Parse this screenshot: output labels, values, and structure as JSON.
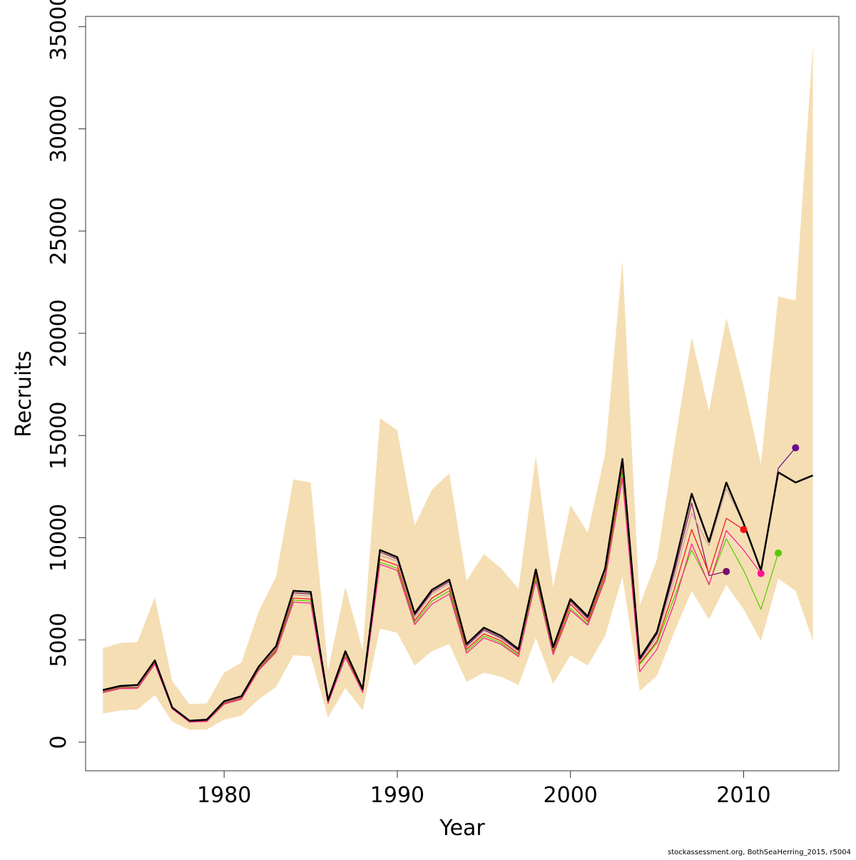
{
  "chart_data": {
    "type": "line",
    "xlabel": "Year",
    "ylabel": "Recruits",
    "xlim": [
      1972,
      2015.5
    ],
    "ylim": [
      -1400,
      35500
    ],
    "x_ticks": [
      1980,
      1990,
      2000,
      2010
    ],
    "y_ticks": [
      0,
      5000,
      10000,
      15000,
      20000,
      25000,
      30000,
      35000
    ],
    "grid": false,
    "legend": "none",
    "colors": {
      "band": "#f5deb3",
      "main_line": "#000000"
    },
    "band": {
      "x": [
        1973,
        1974,
        1975,
        1976,
        1977,
        1978,
        1979,
        1980,
        1981,
        1982,
        1983,
        1984,
        1985,
        1986,
        1987,
        1988,
        1989,
        1990,
        1991,
        1992,
        1993,
        1994,
        1995,
        1996,
        1997,
        1998,
        1999,
        2000,
        2001,
        2002,
        2003,
        2004,
        2005,
        2006,
        2007,
        2008,
        2009,
        2010,
        2011,
        2012,
        2013,
        2014
      ],
      "upper": [
        4600,
        4850,
        4900,
        7100,
        3000,
        1850,
        1900,
        3400,
        3900,
        6400,
        8100,
        12850,
        12700,
        3500,
        7600,
        4500,
        15850,
        15250,
        10600,
        12350,
        13150,
        7900,
        9200,
        8500,
        7500,
        14000,
        7600,
        11600,
        10250,
        14100,
        23550,
        6700,
        8950,
        14500,
        19800,
        16200,
        20750,
        17400,
        13600,
        21800,
        21600,
        34150
      ],
      "lower": [
        1400,
        1550,
        1600,
        2300,
        1000,
        600,
        620,
        1100,
        1300,
        2100,
        2700,
        4250,
        4200,
        1200,
        2650,
        1550,
        5550,
        5350,
        3750,
        4450,
        4800,
        2950,
        3400,
        3200,
        2800,
        5100,
        2850,
        4250,
        3750,
        5200,
        8100,
        2500,
        3250,
        5400,
        7400,
        6000,
        7700,
        6500,
        4950,
        8000,
        7400,
        4950
      ]
    },
    "series": [
      {
        "color": "#000000",
        "x": [
          1973,
          1974,
          1975,
          1976,
          1977,
          1978,
          1979,
          1980,
          1981,
          1982,
          1983,
          1984,
          1985,
          1986,
          1987,
          1988,
          1989,
          1990,
          1991,
          1992,
          1993,
          1994,
          1995,
          1996,
          1997,
          1998,
          1999,
          2000,
          2001,
          2002,
          2003,
          2004,
          2005,
          2006,
          2007,
          2008,
          2009,
          2010,
          2011,
          2012,
          2013,
          2014
        ],
        "y": [
          2550,
          2750,
          2800,
          4000,
          1700,
          1050,
          1100,
          2000,
          2250,
          3700,
          4700,
          7400,
          7350,
          2050,
          4450,
          2600,
          9400,
          9050,
          6300,
          7450,
          7950,
          4800,
          5600,
          5200,
          4550,
          8450,
          4650,
          7000,
          6150,
          8500,
          13850,
          4100,
          5400,
          8600,
          12150,
          9800,
          12700,
          10700,
          8400,
          13200,
          12700,
          13050
        ]
      },
      {
        "color": "#7b0f6b",
        "x": [
          1973,
          1974,
          1975,
          1976,
          1977,
          1978,
          1979,
          1980,
          1981,
          1982,
          1983,
          1984,
          1985,
          1986,
          1987,
          1988,
          1989,
          1990,
          1991,
          1992,
          1993,
          1994,
          1995,
          1996,
          1997,
          1998,
          1999,
          2000,
          2001,
          2002,
          2003,
          2004,
          2005,
          2006,
          2007,
          2008,
          2009
        ],
        "y": [
          2500,
          2700,
          2700,
          3950,
          1680,
          1020,
          1060,
          1950,
          2200,
          3650,
          4650,
          7300,
          7250,
          2020,
          4380,
          2560,
          9300,
          8950,
          6200,
          7350,
          7850,
          4700,
          5500,
          5100,
          4480,
          8350,
          4580,
          6900,
          6050,
          8400,
          13600,
          4000,
          5300,
          8300,
          11700,
          8150,
          8350
        ]
      },
      {
        "color": "#c8a0a0",
        "x": [
          1973,
          1974,
          1975,
          1976,
          1977,
          1978,
          1979,
          1980,
          1981,
          1982,
          1983,
          1984,
          1985,
          1986,
          1987,
          1988,
          1989,
          1990,
          1991,
          1992,
          1993,
          1994,
          1995,
          1996,
          1997,
          1998,
          1999,
          2000,
          2001,
          2002,
          2003,
          2004,
          2005,
          2006,
          2007,
          2008,
          2009,
          2010
        ],
        "y": [
          2480,
          2680,
          2690,
          3920,
          1670,
          1010,
          1050,
          1930,
          2180,
          3620,
          4600,
          7200,
          7150,
          2000,
          4350,
          2540,
          9150,
          8850,
          6100,
          7250,
          7750,
          4650,
          5450,
          5050,
          4430,
          8300,
          4530,
          6850,
          6000,
          8350,
          13500,
          3950,
          5150,
          8000,
          11200,
          9600,
          12400,
          10700
        ]
      },
      {
        "color": "#ee1111",
        "x": [
          1973,
          1974,
          1975,
          1976,
          1977,
          1978,
          1979,
          1980,
          1981,
          1982,
          1983,
          1984,
          1985,
          1986,
          1987,
          1988,
          1989,
          1990,
          1991,
          1992,
          1993,
          1994,
          1995,
          1996,
          1997,
          1998,
          1999,
          2000,
          2001,
          2002,
          2003,
          2004,
          2005,
          2006,
          2007,
          2008,
          2009,
          2010
        ],
        "y": [
          2460,
          2660,
          2670,
          3880,
          1650,
          1000,
          1030,
          1900,
          2150,
          3580,
          4520,
          7050,
          7000,
          1960,
          4250,
          2500,
          8950,
          8650,
          5950,
          7050,
          7550,
          4550,
          5300,
          4950,
          4330,
          8150,
          4430,
          6750,
          5900,
          8200,
          13300,
          3850,
          4950,
          7500,
          10400,
          8250,
          10950,
          10400
        ]
      },
      {
        "color": "#55cc00",
        "x": [
          1973,
          1974,
          1975,
          1976,
          1977,
          1978,
          1979,
          1980,
          1981,
          1982,
          1983,
          1984,
          1985,
          1986,
          1987,
          1988,
          1989,
          1990,
          1991,
          1992,
          1993,
          1994,
          1995,
          1996,
          1997,
          1998,
          1999,
          2000,
          2001,
          2002,
          2003,
          2004,
          2005,
          2006,
          2007,
          2008,
          2009,
          2010,
          2011,
          2012
        ],
        "y": [
          2440,
          2640,
          2650,
          3850,
          1640,
          990,
          1020,
          1880,
          2120,
          3550,
          4450,
          6950,
          6900,
          1940,
          4200,
          2460,
          8800,
          8500,
          5850,
          6900,
          7400,
          4450,
          5200,
          4850,
          4250,
          8050,
          4350,
          6550,
          5780,
          8050,
          13150,
          3800,
          4850,
          7100,
          9400,
          7750,
          9950,
          8400,
          6500,
          9250
        ]
      },
      {
        "color": "#ff1493",
        "x": [
          1973,
          1974,
          1975,
          1976,
          1977,
          1978,
          1979,
          1980,
          1981,
          1982,
          1983,
          1984,
          1985,
          1986,
          1987,
          1988,
          1989,
          1990,
          1991,
          1992,
          1993,
          1994,
          1995,
          1996,
          1997,
          1998,
          1999,
          2000,
          2001,
          2002,
          2003,
          2004,
          2005,
          2006,
          2007,
          2008,
          2009,
          2010,
          2011
        ],
        "y": [
          2420,
          2620,
          2630,
          3820,
          1630,
          980,
          1010,
          1860,
          2100,
          3520,
          4400,
          6850,
          6800,
          1900,
          4150,
          2430,
          8700,
          8400,
          5750,
          6750,
          7250,
          4350,
          5100,
          4780,
          4180,
          7900,
          4280,
          6450,
          5720,
          7950,
          12900,
          3450,
          4550,
          6800,
          9700,
          7700,
          10350,
          9400,
          8250
        ]
      },
      {
        "color": "#6a0d91",
        "x": [
          2011,
          2012,
          2013
        ],
        "y": [
          8300,
          13400,
          14400
        ]
      }
    ],
    "endpoints": [
      {
        "x": 2009,
        "y": 8350,
        "color": "#7b0f6b"
      },
      {
        "x": 2010,
        "y": 10400,
        "color": "#ee1111"
      },
      {
        "x": 2011,
        "y": 8250,
        "color": "#ff1493"
      },
      {
        "x": 2012,
        "y": 9250,
        "color": "#55cc00"
      },
      {
        "x": 2013,
        "y": 14400,
        "color": "#6a0d91"
      }
    ]
  },
  "footer": {
    "source_note": "stockassessment.org, BothSeaHerring_2015, r5004"
  }
}
